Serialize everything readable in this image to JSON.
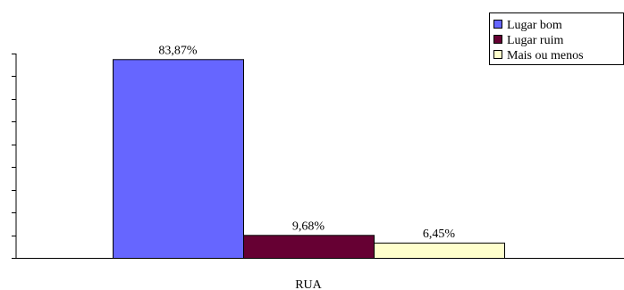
{
  "chart_data": {
    "type": "bar",
    "categories": [
      "RUA"
    ],
    "series": [
      {
        "name": "Lugar bom",
        "values": [
          83.87
        ],
        "label": "83,87%",
        "color": "#6666FF"
      },
      {
        "name": "Lugar ruim",
        "values": [
          9.68
        ],
        "label": "9,68%",
        "color": "#660033"
      },
      {
        "name": "Mais ou menos",
        "values": [
          6.45
        ],
        "label": "6,45%",
        "color": "#FFFFCC"
      }
    ],
    "title": "",
    "xlabel": "",
    "ylabel": "",
    "ylim": [
      0,
      90
    ],
    "legend_position": "top-right",
    "grid": false
  }
}
